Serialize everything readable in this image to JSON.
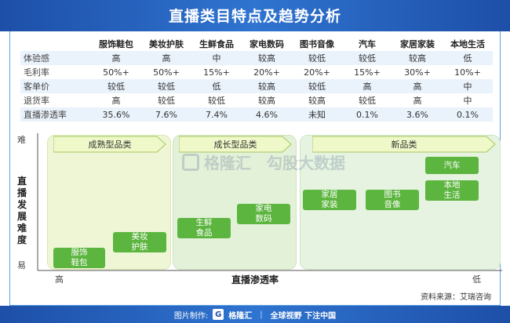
{
  "header": {
    "title": "直播类目特点及趋势分析"
  },
  "table": {
    "columns": [
      "服饰鞋包",
      "美妆护肤",
      "生鲜食品",
      "家电数码",
      "图书音像",
      "汽车",
      "家居家装",
      "本地生活"
    ],
    "rows": [
      {
        "label": "体验感",
        "values": [
          "高",
          "高",
          "中",
          "较高",
          "较低",
          "较低",
          "较高",
          "低"
        ]
      },
      {
        "label": "毛利率",
        "values": [
          "50%+",
          "50%+",
          "15%+",
          "20%+",
          "20%+",
          "15%+",
          "30%+",
          "10%+"
        ]
      },
      {
        "label": "客单价",
        "values": [
          "较低",
          "较低",
          "低",
          "较高",
          "较低",
          "高",
          "高",
          "中"
        ]
      },
      {
        "label": "退货率",
        "values": [
          "高",
          "较低",
          "较低",
          "较高",
          "较高",
          "较低",
          "高",
          "中"
        ]
      },
      {
        "label": "直播渗透率",
        "values": [
          "35.6%",
          "7.6%",
          "7.4%",
          "4.6%",
          "未知",
          "0.1%",
          "3.6%",
          "0.1%"
        ]
      }
    ]
  },
  "chart": {
    "y_axis_label": "直播发展难度",
    "y_top": "难",
    "y_bottom": "易",
    "x_axis_label": "直播渗透率",
    "x_left": "高",
    "x_right": "低",
    "zones": [
      "成熟型品类",
      "成长型品类",
      "新品类"
    ],
    "boxes": [
      {
        "line1": "服饰",
        "line2": "鞋包"
      },
      {
        "line1": "美妆",
        "line2": "护肤"
      },
      {
        "line1": "生鲜",
        "line2": "食品"
      },
      {
        "line1": "家电",
        "line2": "数码"
      },
      {
        "line1": "家居",
        "line2": "家装"
      },
      {
        "line1": "图书",
        "line2": "音像"
      },
      {
        "line1": "汽车",
        "line2": ""
      },
      {
        "line1": "本地",
        "line2": "生活"
      }
    ]
  },
  "watermark": {
    "text1": "格隆汇",
    "text2": "勾股大数据"
  },
  "source": "资料来源：艾瑞咨询",
  "footer": {
    "made_by": "图片制作:",
    "brand": "格隆汇",
    "slogan": "全球视野 下注中国"
  },
  "colors": {
    "header_blue": "#1d4fa8",
    "box_green": "#5cb53f",
    "zone1": "#eef6d6",
    "zone2": "#e3f1d9",
    "zone3": "#e5f3e0"
  }
}
